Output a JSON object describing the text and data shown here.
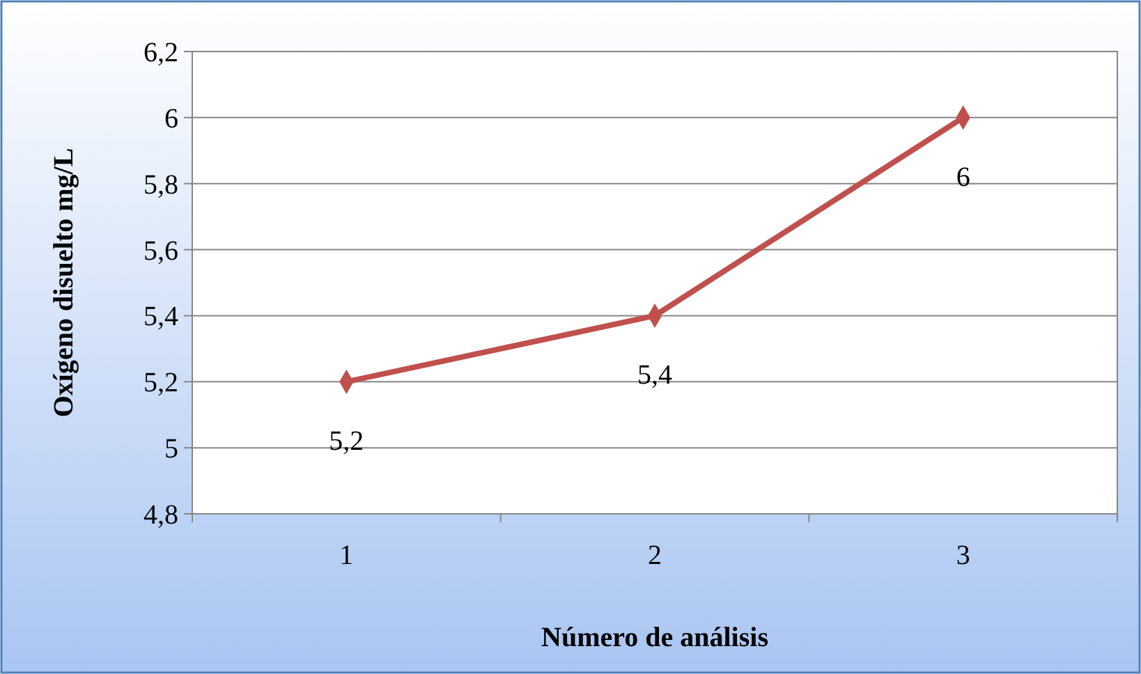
{
  "chart_data": {
    "type": "line",
    "xlabel": "Número de análisis",
    "ylabel": "Oxígeno disuelto mg/L",
    "categories": [
      "1",
      "2",
      "3"
    ],
    "series": [
      {
        "color": "#c0504d",
        "values": [
          5.2,
          5.4,
          6
        ],
        "value_labels": [
          "5,2",
          "5,4",
          "6"
        ]
      }
    ],
    "ylim": [
      4.8,
      6.2
    ],
    "yticks": [
      {
        "value": 4.8,
        "label": "4,8"
      },
      5,
      {
        "value": 5.2,
        "label": "5,2"
      },
      {
        "value": 5.4,
        "label": "5,4"
      },
      {
        "value": 5.6,
        "label": "5,6"
      },
      {
        "value": 5.8,
        "label": "5,8"
      },
      6,
      {
        "value": 6.2,
        "label": "6,2"
      }
    ],
    "grid": "y",
    "marker": "diamond",
    "line_style": "solid"
  }
}
